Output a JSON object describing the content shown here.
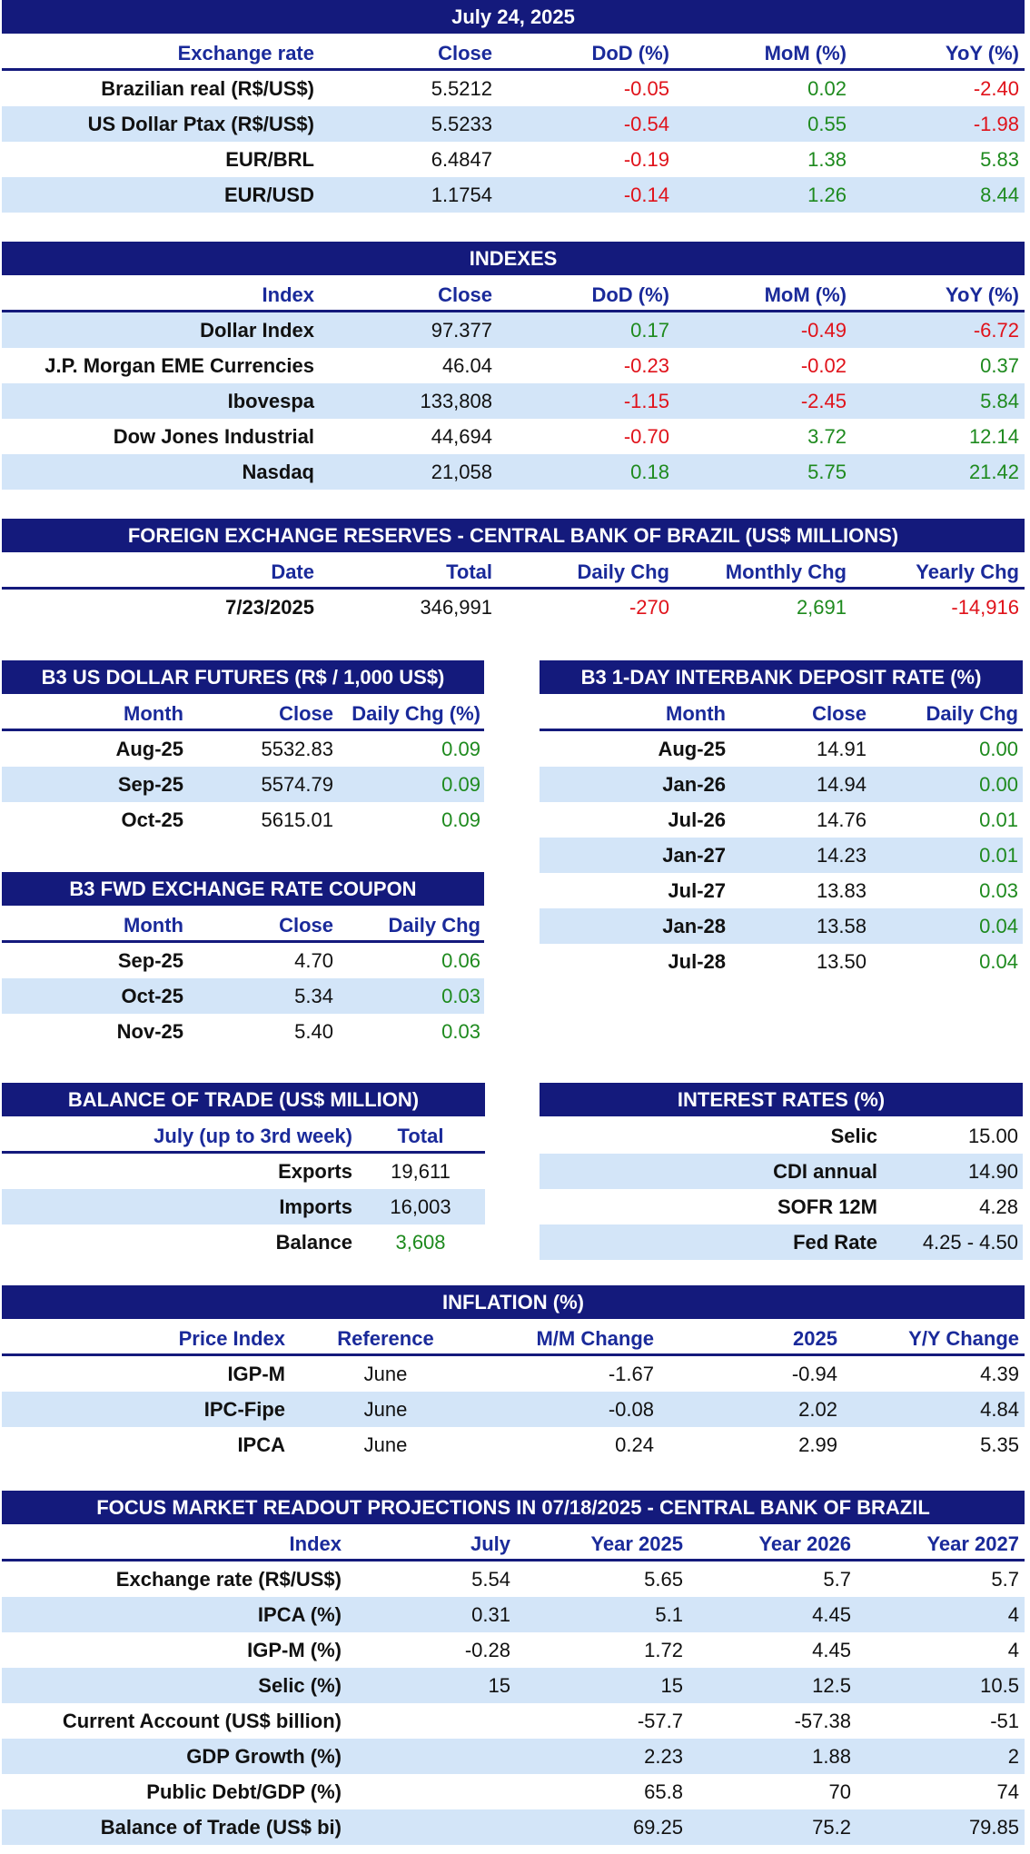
{
  "exchange": {
    "title": "July 24, 2025",
    "headers": [
      "Exchange rate",
      "Close",
      "DoD (%)",
      "MoM (%)",
      "YoY (%)"
    ],
    "rows": [
      [
        "Brazilian real (R$/US$)",
        "5.5212",
        "-0.05",
        "0.02",
        "-2.40"
      ],
      [
        "US Dollar Ptax (R$/US$)",
        "5.5233",
        "-0.54",
        "0.55",
        "-1.98"
      ],
      [
        "EUR/BRL",
        "6.4847",
        "-0.19",
        "1.38",
        "5.83"
      ],
      [
        "EUR/USD",
        "1.1754",
        "-0.14",
        "1.26",
        "8.44"
      ]
    ]
  },
  "indexes": {
    "title": "INDEXES",
    "headers": [
      "Index",
      "Close",
      "DoD (%)",
      "MoM (%)",
      "YoY (%)"
    ],
    "rows": [
      [
        "Dollar Index",
        "97.377",
        "0.17",
        "-0.49",
        "-6.72"
      ],
      [
        "J.P. Morgan EME Currencies",
        "46.04",
        "-0.23",
        "-0.02",
        "0.37"
      ],
      [
        "Ibovespa",
        "133,808",
        "-1.15",
        "-2.45",
        "5.84"
      ],
      [
        "Dow Jones Industrial",
        "44,694",
        "-0.70",
        "3.72",
        "12.14"
      ],
      [
        "Nasdaq",
        "21,058",
        "0.18",
        "5.75",
        "21.42"
      ]
    ]
  },
  "reserves": {
    "title": "FOREIGN EXCHANGE RESERVES - CENTRAL BANK OF BRAZIL (US$ MILLIONS)",
    "headers": [
      "Date",
      "Total",
      "Daily Chg",
      "Monthly Chg",
      "Yearly Chg"
    ],
    "rows": [
      [
        "7/23/2025",
        "346,991",
        "-270",
        "2,691",
        "-14,916"
      ]
    ]
  },
  "futures": {
    "title": "B3 US DOLLAR FUTURES (R$ / 1,000 US$)",
    "headers": [
      "Month",
      "Close",
      "Daily Chg (%)"
    ],
    "rows": [
      [
        "Aug-25",
        "5532.83",
        "0.09"
      ],
      [
        "Sep-25",
        "5574.79",
        "0.09"
      ],
      [
        "Oct-25",
        "5615.01",
        "0.09"
      ]
    ]
  },
  "interbank": {
    "title": "B3 1-DAY INTERBANK DEPOSIT RATE (%)",
    "headers": [
      "Month",
      "Close",
      "Daily Chg"
    ],
    "rows": [
      [
        "Aug-25",
        "14.91",
        "0.00"
      ],
      [
        "Jan-26",
        "14.94",
        "0.00"
      ],
      [
        "Jul-26",
        "14.76",
        "0.01"
      ],
      [
        "Jan-27",
        "14.23",
        "0.01"
      ],
      [
        "Jul-27",
        "13.83",
        "0.03"
      ],
      [
        "Jan-28",
        "13.58",
        "0.04"
      ],
      [
        "Jul-28",
        "13.50",
        "0.04"
      ]
    ]
  },
  "coupon": {
    "title": "B3 FWD EXCHANGE RATE COUPON",
    "headers": [
      "Month",
      "Close",
      "Daily Chg"
    ],
    "rows": [
      [
        "Sep-25",
        "4.70",
        "0.06"
      ],
      [
        "Oct-25",
        "5.34",
        "0.03"
      ],
      [
        "Nov-25",
        "5.40",
        "0.03"
      ]
    ]
  },
  "trade": {
    "title": "BALANCE OF TRADE (US$ MILLION)",
    "headers": [
      "July (up to 3rd week)",
      "Total"
    ],
    "rows": [
      [
        "Exports",
        "19,611"
      ],
      [
        "Imports",
        "16,003"
      ],
      [
        "Balance",
        "3,608"
      ]
    ]
  },
  "rates": {
    "title": "INTEREST RATES (%)",
    "rows": [
      [
        "Selic",
        "15.00"
      ],
      [
        "CDI annual",
        "14.90"
      ],
      [
        "SOFR 12M",
        "4.28"
      ],
      [
        "Fed Rate",
        "4.25 - 4.50"
      ]
    ]
  },
  "inflation": {
    "title": "INFLATION (%)",
    "headers": [
      "Price Index",
      "Reference",
      "M/M Change",
      "2025",
      "Y/Y Change"
    ],
    "rows": [
      [
        "IGP-M",
        "June",
        "-1.67",
        "-0.94",
        "4.39"
      ],
      [
        "IPC-Fipe",
        "June",
        "-0.08",
        "2.02",
        "4.84"
      ],
      [
        "IPCA",
        "June",
        "0.24",
        "2.99",
        "5.35"
      ]
    ]
  },
  "focus": {
    "title": "FOCUS MARKET READOUT PROJECTIONS IN 07/18/2025 - CENTRAL BANK OF BRAZIL",
    "headers": [
      "Index",
      "July",
      "Year 2025",
      "Year 2026",
      "Year 2027"
    ],
    "rows": [
      [
        "Exchange rate (R$/US$)",
        "5.54",
        "5.65",
        "5.7",
        "5.7"
      ],
      [
        "IPCA (%)",
        "0.31",
        "5.1",
        "4.45",
        "4"
      ],
      [
        "IGP-M (%)",
        "-0.28",
        "1.72",
        "4.45",
        "4"
      ],
      [
        "Selic (%)",
        "15",
        "15",
        "12.5",
        "10.5"
      ],
      [
        "Current Account (US$ billion)",
        "",
        "-57.7",
        "-57.38",
        "-51"
      ],
      [
        "GDP Growth (%)",
        "",
        "2.23",
        "1.88",
        "2"
      ],
      [
        "Public Debt/GDP (%)",
        "",
        "65.8",
        "70",
        "74"
      ],
      [
        "Balance of Trade (US$ bi)",
        "",
        "69.25",
        "75.2",
        "79.85"
      ]
    ]
  },
  "colors": {
    "header_bar": "#141a7c",
    "shade": "#d3e5f8",
    "positive": "#1e8a1e",
    "negative": "#e0121a"
  }
}
